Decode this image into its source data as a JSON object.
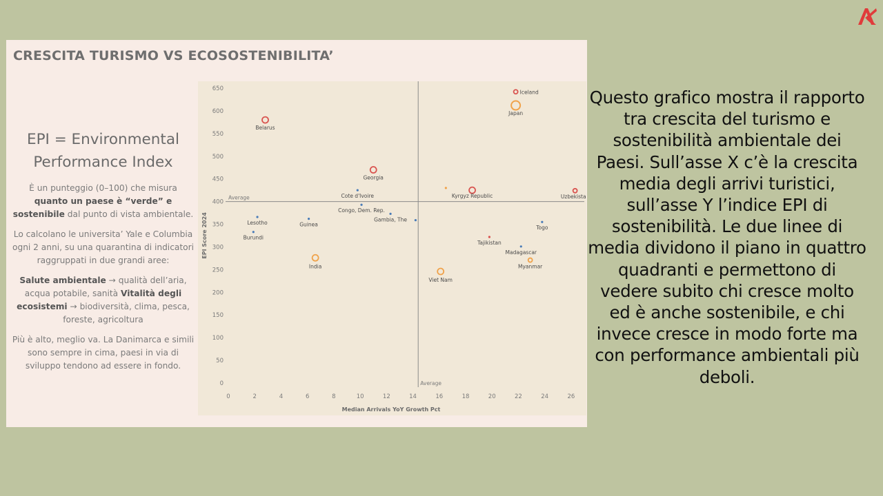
{
  "logo": {
    "icon": "ak-logo-icon",
    "color": "#e03b3b"
  },
  "panel": {
    "title": "CRESCITA TURISMO VS ECOSOSTENIBILITA’",
    "epi_heading_line1": "EPI = Environmental",
    "epi_heading_line2": "Performance Index",
    "p1_a": "È un punteggio (0–100) che misura ",
    "p1_b": "quanto un paese è “verde” e sostenibile",
    "p1_c": " dal punto di vista ambientale.",
    "p2": "Lo calcolano le universita’ Yale e Columbia ogni 2 anni, su una quarantina di indicatori raggruppati in due grandi aree:",
    "p3_a": "Salute ambientale",
    "p3_b": " → qualità dell’aria, acqua potabile, sanità ",
    "p3_c": "Vitalità degli ecosistemi",
    "p3_d": " → biodiversità, clima, pesca, foreste, agricoltura",
    "p4": "Più è alto, meglio va. La Danimarca e simili sono sempre in cima, paesi in via di sviluppo tendono ad essere in fondo."
  },
  "description": "Questo grafico mostra il rapporto tra crescita del turismo e sostenibilità ambientale dei Paesi. Sull’asse X c’è la crescita media degli arrivi turistici, sull’asse Y l’indice EPI di sostenibilità. Le due linee di media dividono il piano in quattro quadranti e permettono di vedere subito chi cresce molto ed è anche sostenibile, e chi invece cresce in modo forte ma con performance ambientali più deboli.",
  "chart_data": {
    "type": "scatter",
    "title": "",
    "xlabel": "Median Arrivals YoY Growth Pct",
    "ylabel": "EPI Score 2024",
    "xlim": [
      0,
      27
    ],
    "ylim": [
      0,
      650
    ],
    "xticks": [
      0,
      2,
      4,
      6,
      8,
      10,
      12,
      14,
      16,
      18,
      20,
      22,
      24,
      26
    ],
    "yticks": [
      0,
      50,
      100,
      150,
      200,
      250,
      300,
      350,
      400,
      450,
      500,
      550,
      600,
      650
    ],
    "x_average": 14.4,
    "y_average": 400,
    "average_label": "Average",
    "grid": false,
    "colors": {
      "red": "#d9534f",
      "orange": "#f0a24a",
      "blue": "#4a7cb8",
      "bg": "#f1e8d8"
    },
    "points": [
      {
        "label": "Iceland",
        "x": 21.8,
        "y": 642,
        "color": "red",
        "size": "small"
      },
      {
        "label": "Japan",
        "x": 21.8,
        "y": 612,
        "color": "orange",
        "size": "large"
      },
      {
        "label": "Belarus",
        "x": 2.8,
        "y": 580,
        "color": "red",
        "size": "medium"
      },
      {
        "label": "Georgia",
        "x": 11.0,
        "y": 470,
        "color": "red",
        "size": "medium"
      },
      {
        "label": "Cote d'Ivoire",
        "x": 9.8,
        "y": 425,
        "color": "blue",
        "size": "tiny"
      },
      {
        "label": "",
        "x": 16.5,
        "y": 430,
        "color": "orange",
        "size": "tiny"
      },
      {
        "label": "Kyrgyz Republic",
        "x": 18.5,
        "y": 425,
        "color": "red",
        "size": "medium"
      },
      {
        "label": "Uzbekistan",
        "x": 26.3,
        "y": 424,
        "color": "red",
        "size": "small"
      },
      {
        "label": "Congo, Dem. Rep.",
        "x": 10.1,
        "y": 393,
        "color": "blue",
        "size": "tiny"
      },
      {
        "label": "Gambia, The",
        "x": 12.3,
        "y": 373,
        "color": "blue",
        "size": "tiny"
      },
      {
        "label": "",
        "x": 14.2,
        "y": 359,
        "color": "blue",
        "size": "tiny"
      },
      {
        "label": "Lesotho",
        "x": 2.2,
        "y": 366,
        "color": "blue",
        "size": "tiny"
      },
      {
        "label": "Guinea",
        "x": 6.1,
        "y": 362,
        "color": "blue",
        "size": "tiny"
      },
      {
        "label": "Burundi",
        "x": 1.9,
        "y": 333,
        "color": "blue",
        "size": "tiny"
      },
      {
        "label": "Togo",
        "x": 23.8,
        "y": 355,
        "color": "blue",
        "size": "tiny"
      },
      {
        "label": "Tajikistan",
        "x": 19.8,
        "y": 322,
        "color": "red",
        "size": "tiny"
      },
      {
        "label": "Madagascar",
        "x": 22.2,
        "y": 301,
        "color": "blue",
        "size": "tiny"
      },
      {
        "label": "India",
        "x": 6.6,
        "y": 276,
        "color": "orange",
        "size": "medium"
      },
      {
        "label": "Myanmar",
        "x": 22.9,
        "y": 271,
        "color": "orange",
        "size": "small"
      },
      {
        "label": "Viet Nam",
        "x": 16.1,
        "y": 246,
        "color": "orange",
        "size": "medium"
      }
    ]
  }
}
